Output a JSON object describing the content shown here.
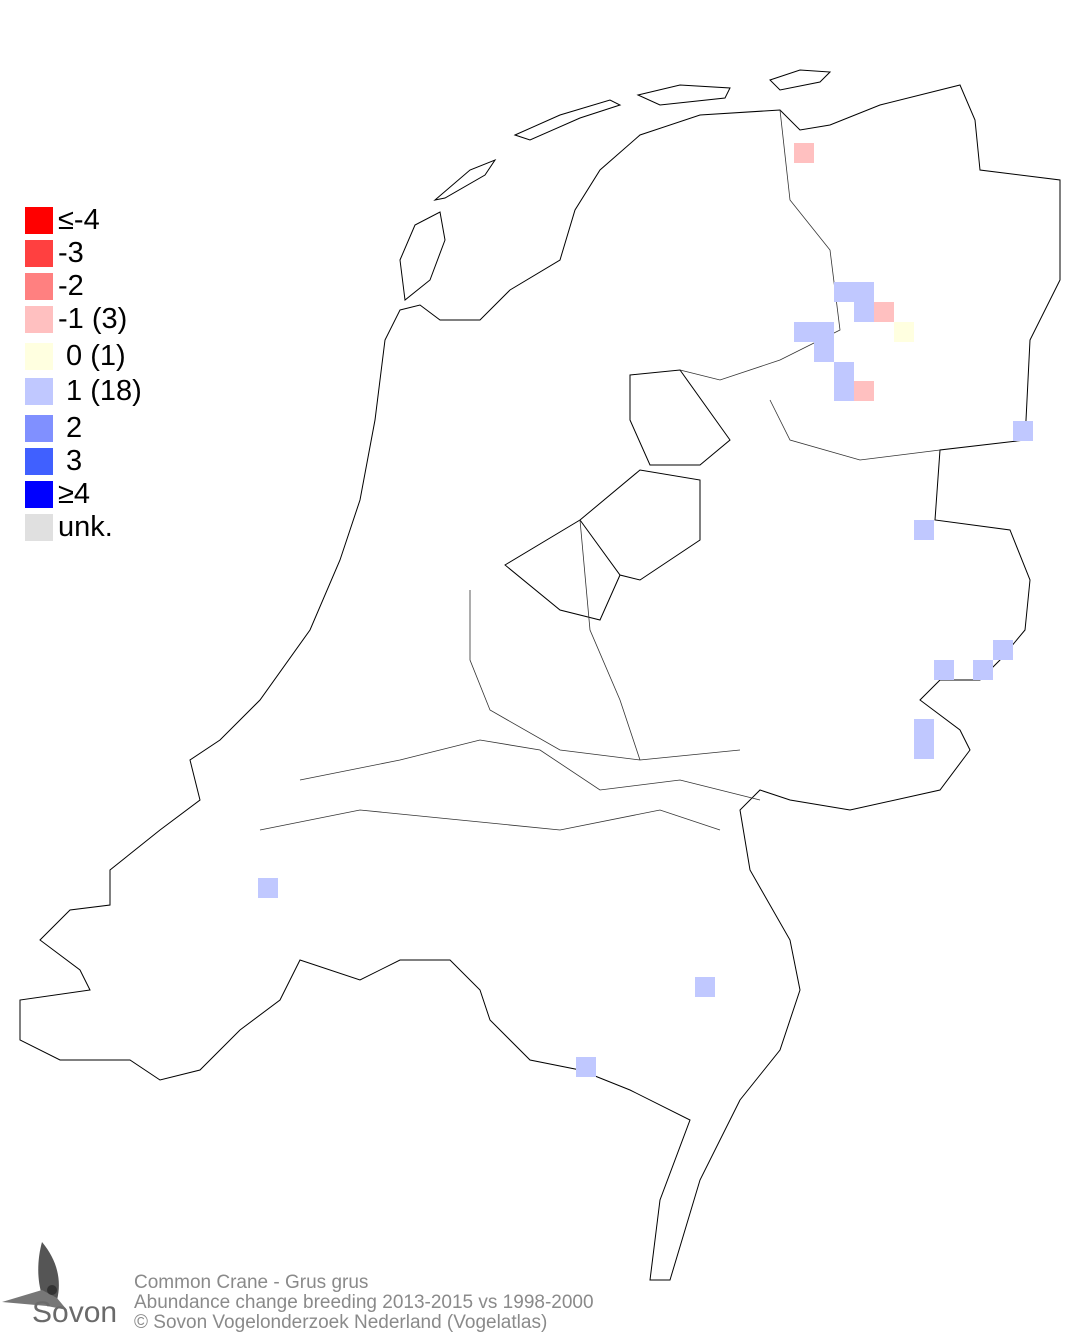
{
  "legend": [
    {
      "label": "≤-4",
      "color": "#ff0000"
    },
    {
      "label": "-3",
      "color": "#ff4040"
    },
    {
      "label": "-2",
      "color": "#ff8080"
    },
    {
      "label": "-1 (3)",
      "color": "#ffc0c0"
    },
    {
      "label": " 0 (1)",
      "color": "#ffffe0"
    },
    {
      "label": " 1 (18)",
      "color": "#c0c8ff"
    },
    {
      "label": " 2",
      "color": "#8090ff"
    },
    {
      "label": " 3",
      "color": "#4060ff"
    },
    {
      "label": "≥4",
      "color": "#0000ff"
    },
    {
      "label": "unk.",
      "color": "#e0e0e0"
    }
  ],
  "footer": {
    "line1": "Common Crane - Grus grus",
    "line2": "Abundance change breeding  2013-2015 vs 1998-2000",
    "line3": "© Sovon Vogelonderzoek Nederland (Vogelatlas)"
  },
  "logo": {
    "text": "Sovon",
    "icon": "swallow-icon"
  }
}
